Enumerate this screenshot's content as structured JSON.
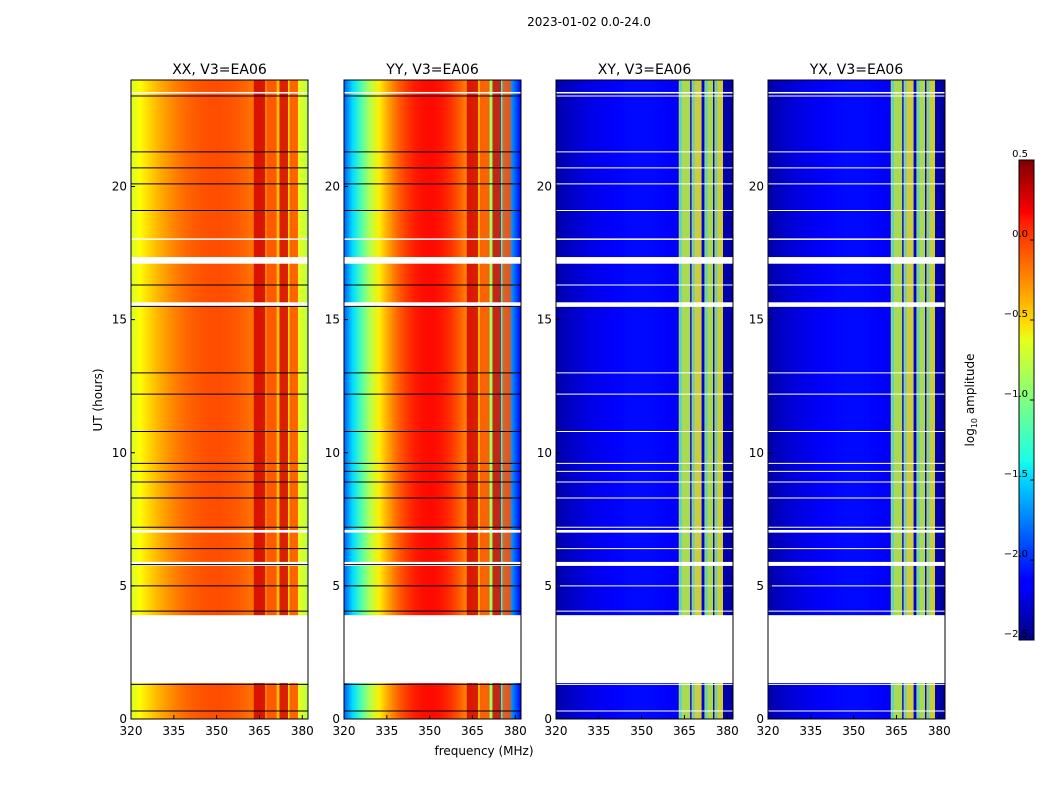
{
  "figure": {
    "suptitle": "2023-01-02 0.0-24.0",
    "xlabel": "frequency (MHz)",
    "ylabel": "UT (hours)"
  },
  "colors": {
    "background": "#ffffff",
    "frame": "#000000",
    "flag_black": "#000000",
    "flag_white": "#ffffff"
  },
  "chart_data": {
    "type": "heatmap",
    "colormap": "jet",
    "x_range": [
      320,
      382
    ],
    "y_range": [
      0,
      24
    ],
    "x_ticks": [
      320,
      335,
      350,
      365,
      380
    ],
    "y_ticks": [
      0,
      5,
      10,
      15,
      20
    ],
    "data_gap_hours": [
      1.35,
      3.9
    ],
    "rfi_channels_mhz": [
      [
        363,
        367
      ],
      [
        367.5,
        371
      ],
      [
        372,
        375
      ],
      [
        375.5,
        378.5
      ]
    ],
    "flag_lines_black": [
      0.3,
      1.3,
      4.05,
      5.0,
      5.8,
      6.4,
      7.2,
      8.3,
      8.9,
      9.3,
      9.6,
      10.8,
      12.2,
      13.0,
      15.5,
      16.3,
      19.1,
      20.1,
      20.7,
      21.3,
      23.4
    ],
    "flag_bands_white": [
      [
        5.75,
        5.9
      ],
      [
        7.0,
        7.1
      ],
      [
        15.5,
        15.65
      ],
      [
        17.1,
        17.35
      ],
      [
        18.0,
        18.05
      ],
      [
        23.5,
        23.55
      ]
    ],
    "panels": [
      {
        "title": "XX, V3=EA06",
        "kind": "parallel",
        "center_mhz": 350,
        "peak": -0.1
      },
      {
        "title": "YY, V3=EA06",
        "kind": "parallel-peaked",
        "center_mhz": 350,
        "peak": 0.1
      },
      {
        "title": "XY, V3=EA06",
        "kind": "cross",
        "center_mhz": 350,
        "peak": -2.1
      },
      {
        "title": "YX, V3=EA06",
        "kind": "cross",
        "center_mhz": 350,
        "peak": -2.1
      }
    ],
    "colorbar": {
      "label_main": "log",
      "label_sub": "10",
      "label_rest": " amplitude",
      "range": [
        -2.5,
        0.5
      ],
      "ticks": [
        0.5,
        0.0,
        -0.5,
        -1.0,
        -1.5,
        -2.0,
        -2.5
      ],
      "tick_labels": [
        "0.5",
        "0.0",
        "−0.5",
        "−1.0",
        "−1.5",
        "−2.0",
        "−2.5"
      ]
    }
  }
}
